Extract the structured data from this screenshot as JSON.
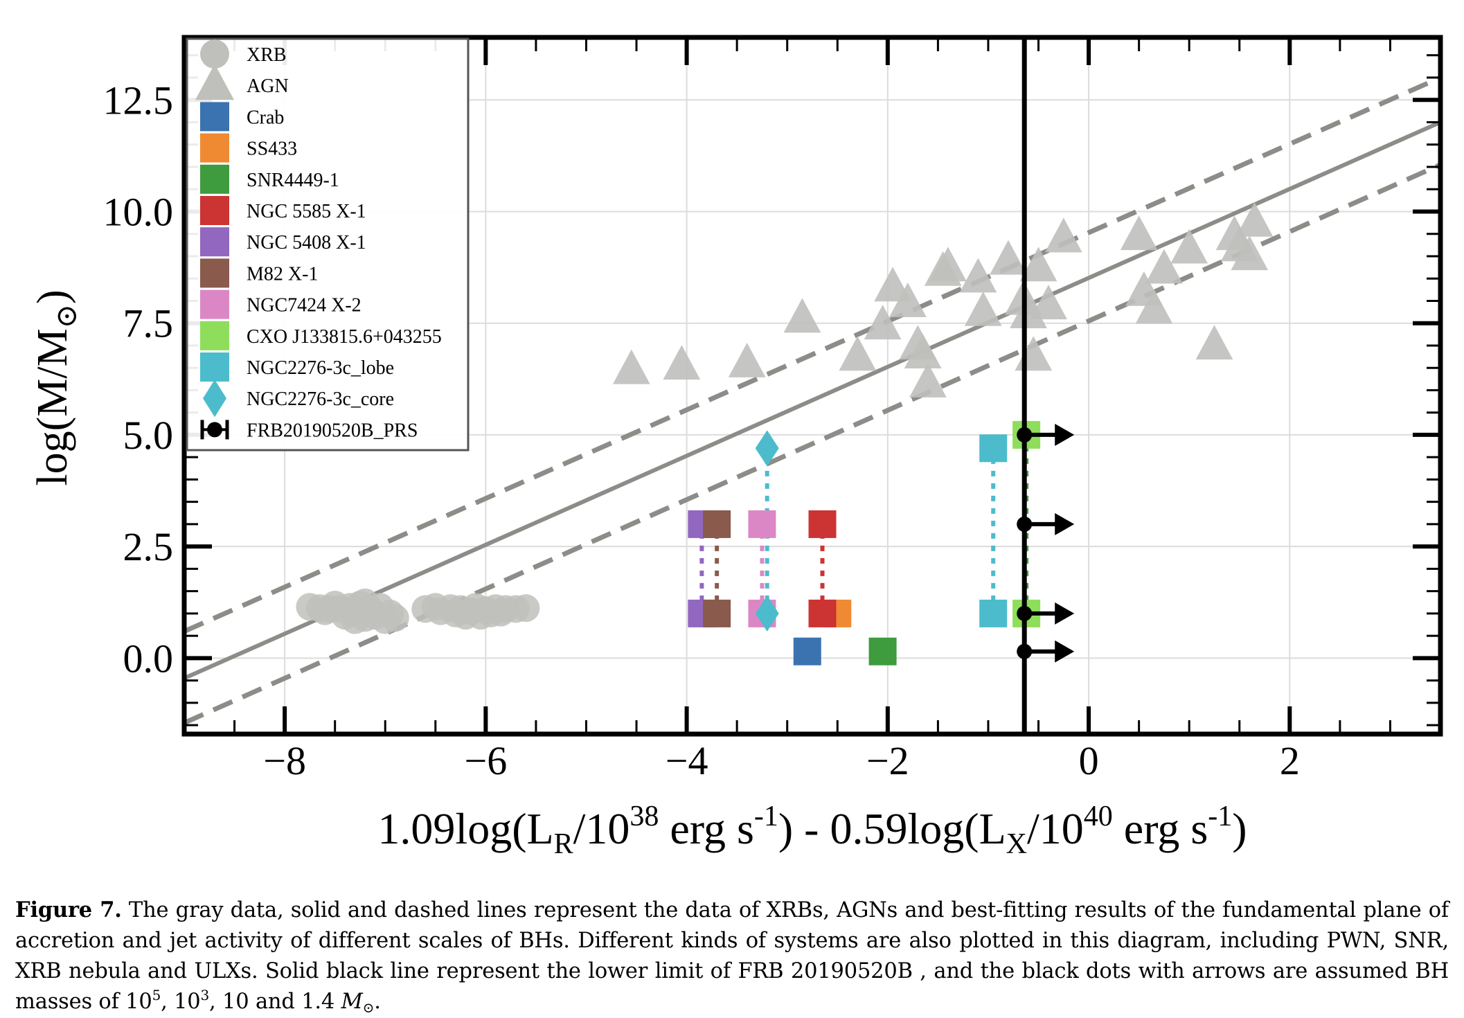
{
  "chart_data": {
    "type": "scatter",
    "xlim": [
      -9.0,
      3.5
    ],
    "ylim": [
      -1.7,
      13.9
    ],
    "x_ticks": [
      -8,
      -6,
      -4,
      -2,
      0,
      2
    ],
    "x_tick_labels": [
      "−8",
      "−6",
      "−4",
      "−2",
      "0",
      "2"
    ],
    "y_ticks": [
      0.0,
      2.5,
      5.0,
      7.5,
      10.0,
      12.5
    ],
    "y_tick_labels": [
      "0.0",
      "2.5",
      "5.0",
      "7.5",
      "10.0",
      "12.5"
    ],
    "xlabel": {
      "a": "1.09log(L",
      "a_sub": "R",
      "b": "/10",
      "b_sup": "38",
      "c": " erg s",
      "c_sup": "-1",
      "d": ") - 0.59log(L",
      "d_sub": "X",
      "e": "/10",
      "e_sup": "40",
      "f": " erg s",
      "f_sup": "-1",
      "g": ")"
    },
    "ylabel": {
      "a": "log(M/M",
      "sub": "⊙",
      "b": ")"
    },
    "grid": true,
    "legend_placement": "upper-left",
    "colors": {
      "gray": "#bfbfbc",
      "fit": "#8c8c88",
      "crab": "#3b73b0",
      "ss433": "#ef8a33",
      "snr": "#3e9b3e",
      "ngc5585": "#cc3333",
      "ngc5408": "#9167c0",
      "m82": "#8a5a4d",
      "ngc7424": "#dc87c5",
      "cxo": "#8ede5c",
      "lobe": "#4cbccc",
      "frb": "#000000"
    },
    "fit_line": {
      "x": [
        -9.0,
        3.5
      ],
      "y": [
        -0.45,
        12.0
      ]
    },
    "upper_bound": {
      "x": [
        -9.0,
        3.5
      ],
      "y": [
        0.6,
        13.0
      ]
    },
    "lower_bound": {
      "x": [
        -9.0,
        3.5
      ],
      "y": [
        -1.45,
        11.05
      ]
    },
    "frb_limit_x": -0.64,
    "series": [
      {
        "name": "XRB",
        "marker": "circle",
        "color": "#bfbfbc",
        "points": [
          [
            -7.75,
            1.15
          ],
          [
            -7.6,
            1.05
          ],
          [
            -7.5,
            1.2
          ],
          [
            -7.45,
            1.1
          ],
          [
            -7.4,
            0.95
          ],
          [
            -7.35,
            1.15
          ],
          [
            -7.3,
            1.05
          ],
          [
            -7.25,
            1.2
          ],
          [
            -7.2,
            0.9
          ],
          [
            -7.15,
            1.1
          ],
          [
            -7.1,
            0.95
          ],
          [
            -7.05,
            1.15
          ],
          [
            -7.0,
            0.85
          ],
          [
            -6.95,
            1.0
          ],
          [
            -6.9,
            0.9
          ],
          [
            -7.55,
            1.1
          ],
          [
            -7.65,
            1.12
          ],
          [
            -7.3,
            0.85
          ],
          [
            -7.2,
            1.25
          ],
          [
            -6.6,
            1.1
          ],
          [
            -6.5,
            1.15
          ],
          [
            -6.45,
            1.05
          ],
          [
            -6.35,
            1.12
          ],
          [
            -6.3,
            1.0
          ],
          [
            -6.25,
            1.1
          ],
          [
            -6.2,
            0.95
          ],
          [
            -6.15,
            1.05
          ],
          [
            -6.1,
            1.15
          ],
          [
            -6.05,
            0.95
          ],
          [
            -6.0,
            1.08
          ],
          [
            -5.95,
            1.0
          ],
          [
            -5.9,
            1.12
          ],
          [
            -5.85,
            1.02
          ],
          [
            -5.8,
            1.1
          ],
          [
            -5.7,
            1.1
          ],
          [
            -5.6,
            1.12
          ]
        ]
      },
      {
        "name": "AGN",
        "marker": "triangle",
        "color": "#bfbfbc",
        "points": [
          [
            -4.55,
            6.45
          ],
          [
            -4.05,
            6.55
          ],
          [
            -3.4,
            6.6
          ],
          [
            -2.85,
            7.6
          ],
          [
            -2.3,
            6.75
          ],
          [
            -2.05,
            7.45
          ],
          [
            -1.95,
            8.3
          ],
          [
            -1.8,
            7.95
          ],
          [
            -1.7,
            7.0
          ],
          [
            -1.65,
            6.8
          ],
          [
            -1.6,
            6.15
          ],
          [
            -1.45,
            8.65
          ],
          [
            -1.4,
            8.75
          ],
          [
            -1.1,
            8.5
          ],
          [
            -1.05,
            7.75
          ],
          [
            -0.8,
            8.9
          ],
          [
            -0.65,
            8.0
          ],
          [
            -0.6,
            7.7
          ],
          [
            -0.55,
            6.75
          ],
          [
            -0.5,
            8.75
          ],
          [
            -0.4,
            7.9
          ],
          [
            -0.25,
            9.4
          ],
          [
            0.5,
            9.45
          ],
          [
            0.55,
            8.2
          ],
          [
            0.65,
            7.8
          ],
          [
            0.75,
            8.7
          ],
          [
            1.0,
            9.15
          ],
          [
            1.25,
            7.0
          ],
          [
            1.45,
            9.45
          ],
          [
            1.5,
            9.2
          ],
          [
            1.6,
            9.0
          ],
          [
            1.65,
            9.75
          ]
        ]
      },
      {
        "name": "Crab",
        "marker": "square",
        "color": "#3b73b0",
        "points": [
          [
            -2.8,
            0.15
          ]
        ]
      },
      {
        "name": "SS433",
        "marker": "square",
        "color": "#ef8a33",
        "points": [
          [
            -2.5,
            1.0
          ]
        ]
      },
      {
        "name": "SNR4449-1",
        "marker": "square",
        "color": "#3e9b3e",
        "points": [
          [
            -2.05,
            0.15
          ]
        ]
      },
      {
        "name": "NGC 5585 X-1",
        "marker": "square",
        "color": "#cc3333",
        "points": [
          [
            -2.65,
            1.0
          ],
          [
            -2.65,
            3.0
          ]
        ]
      },
      {
        "name": "NGC 5408 X-1",
        "marker": "square",
        "color": "#9167c0",
        "points": [
          [
            -3.85,
            1.0
          ],
          [
            -3.85,
            3.0
          ]
        ]
      },
      {
        "name": "M82 X-1",
        "marker": "square",
        "color": "#8a5a4d",
        "points": [
          [
            -3.7,
            1.0
          ],
          [
            -3.7,
            3.0
          ]
        ]
      },
      {
        "name": "NGC7424 X-2",
        "marker": "square",
        "color": "#dc87c5",
        "points": [
          [
            -3.25,
            1.0
          ],
          [
            -3.25,
            3.0
          ]
        ]
      },
      {
        "name": "CXO J133815.6+043255",
        "marker": "square",
        "color": "#8ede5c",
        "points": [
          [
            -0.62,
            1.0
          ],
          [
            -0.62,
            5.0
          ]
        ]
      },
      {
        "name": "NGC2276-3c_lobe",
        "marker": "square",
        "color": "#4cbccc",
        "points": [
          [
            -0.95,
            1.0
          ],
          [
            -0.95,
            4.7
          ]
        ]
      },
      {
        "name": "NGC2276-3c_core",
        "marker": "diamond",
        "color": "#4cbccc",
        "points": [
          [
            -3.2,
            1.0
          ],
          [
            -3.2,
            4.7
          ]
        ]
      },
      {
        "name": "FRB20190520B_PRS",
        "marker": "errorbar-dot",
        "color": "#000000",
        "points": [
          [
            -0.64,
            0.15
          ],
          [
            -0.64,
            1.0
          ],
          [
            -0.64,
            3.0
          ],
          [
            -0.64,
            5.0
          ]
        ]
      }
    ],
    "dotted_links": [
      {
        "x": -3.85,
        "y": [
          1.0,
          3.0
        ],
        "color": "#9167c0"
      },
      {
        "x": -3.7,
        "y": [
          1.0,
          3.0
        ],
        "color": "#8a5a4d"
      },
      {
        "x": -3.25,
        "y": [
          1.0,
          3.0
        ],
        "color": "#dc87c5"
      },
      {
        "x": -3.2,
        "y": [
          1.0,
          4.7
        ],
        "color": "#4cbccc"
      },
      {
        "x": -2.65,
        "y": [
          1.0,
          3.0
        ],
        "color": "#cc3333"
      },
      {
        "x": -0.95,
        "y": [
          1.0,
          4.7
        ],
        "color": "#4cbccc"
      },
      {
        "x": -0.62,
        "y": [
          1.0,
          5.0
        ],
        "color": "#3e9b3e"
      }
    ]
  },
  "legend": [
    {
      "label": "XRB",
      "marker": "circle",
      "color": "#bfbfbc"
    },
    {
      "label": "AGN",
      "marker": "triangle",
      "color": "#bfbfbc"
    },
    {
      "label": "Crab",
      "marker": "square",
      "color": "#3b73b0"
    },
    {
      "label": "SS433",
      "marker": "square",
      "color": "#ef8a33"
    },
    {
      "label": "SNR4449-1",
      "marker": "square",
      "color": "#3e9b3e"
    },
    {
      "label": "NGC 5585 X-1",
      "marker": "square",
      "color": "#cc3333"
    },
    {
      "label": "NGC 5408 X-1",
      "marker": "square",
      "color": "#9167c0"
    },
    {
      "label": "M82 X-1",
      "marker": "square",
      "color": "#8a5a4d"
    },
    {
      "label": "NGC7424 X-2",
      "marker": "square",
      "color": "#dc87c5"
    },
    {
      "label": "CXO J133815.6+043255",
      "marker": "square",
      "color": "#8ede5c"
    },
    {
      "label": "NGC2276-3c_lobe",
      "marker": "square",
      "color": "#4cbccc"
    },
    {
      "label": "NGC2276-3c_core",
      "marker": "diamond",
      "color": "#4cbccc"
    },
    {
      "label": "FRB20190520B_PRS",
      "marker": "errorbar-dot",
      "color": "#000000"
    }
  ],
  "caption": {
    "label": "Figure 7.",
    "text1": " The gray data, solid and dashed lines represent the data of XRBs, AGNs and best-fitting results of the fundamental plane of accretion and jet activity of different scales of BHs. Different kinds of systems are also plotted in this diagram, including PWN, SNR, XRB nebula and ULXs. Solid black line represent the lower limit of FRB 20190520B , and the black dots with arrows are assumed BH masses of 10",
    "sup1": "5",
    "text2": ", 10",
    "sup2": "3",
    "text3": ", 10 and 1.4 ",
    "mass_symbol": "M",
    "mass_sub": "⊙",
    "text4": "."
  }
}
